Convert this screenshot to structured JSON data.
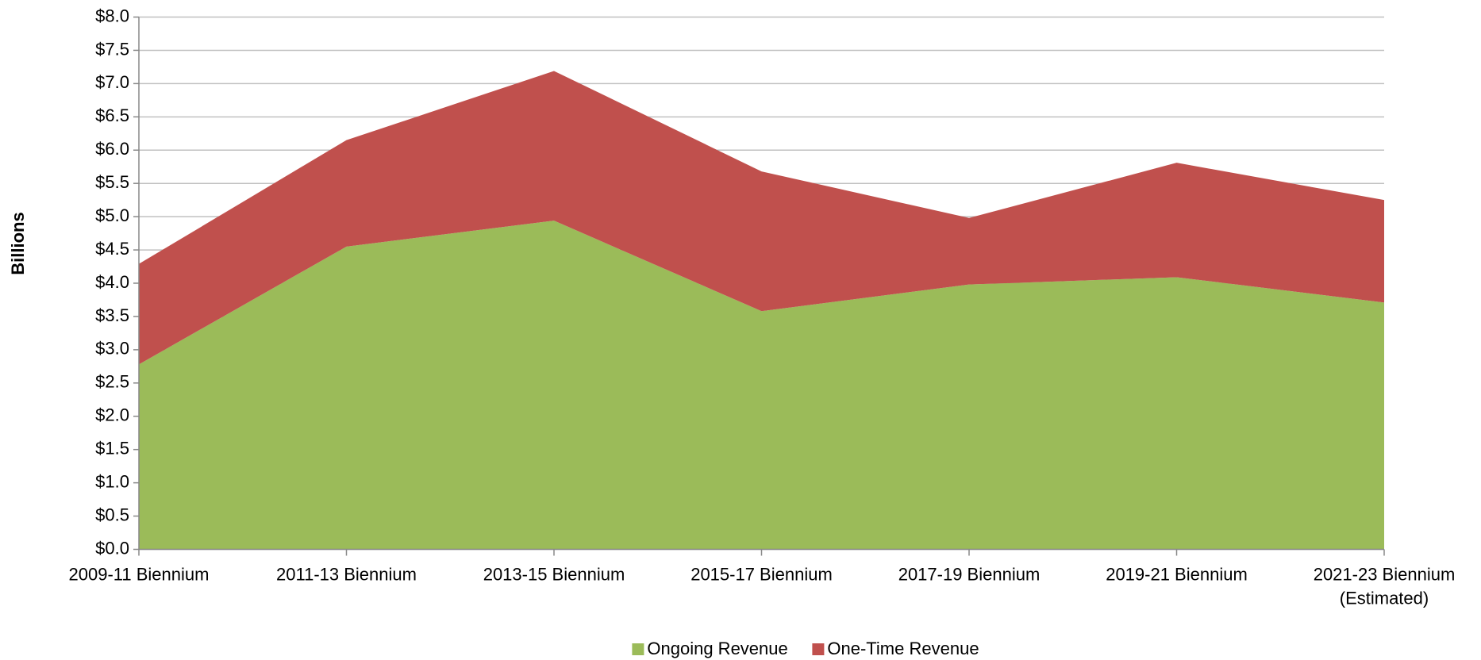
{
  "chart_data": {
    "type": "stacked_area",
    "y_label": "Billions",
    "categories": [
      "2009-11 Biennium",
      "2011-13 Biennium",
      "2013-15 Biennium",
      "2015-17 Biennium",
      "2017-19 Biennium",
      "2019-21 Biennium",
      "2021-23 Biennium\n(Estimated)"
    ],
    "series": [
      {
        "name": "Ongoing Revenue",
        "color": "#9bbb59",
        "values": [
          2.78,
          4.55,
          4.94,
          3.58,
          3.98,
          4.09,
          3.71
        ]
      },
      {
        "name": "One-Time Revenue",
        "color": "#c0504d",
        "values": [
          1.51,
          1.6,
          2.25,
          2.1,
          1.0,
          1.72,
          1.54
        ]
      }
    ],
    "ylim": [
      0,
      8
    ],
    "yticks": [
      {
        "value": 0,
        "label": "$0.0"
      },
      {
        "value": 0.5,
        "label": "$0.5"
      },
      {
        "value": 1,
        "label": "$1.0"
      },
      {
        "value": 1.5,
        "label": "$1.5"
      },
      {
        "value": 2,
        "label": "$2.0"
      },
      {
        "value": 2.5,
        "label": "$2.5"
      },
      {
        "value": 3,
        "label": "$3.0"
      },
      {
        "value": 3.5,
        "label": "$3.5"
      },
      {
        "value": 4,
        "label": "$4.0"
      },
      {
        "value": 4.5,
        "label": "$4.5"
      },
      {
        "value": 5,
        "label": "$5.0"
      },
      {
        "value": 5.5,
        "label": "$5.5"
      },
      {
        "value": 6,
        "label": "$6.0"
      },
      {
        "value": 6.5,
        "label": "$6.5"
      },
      {
        "value": 7,
        "label": "$7.0"
      },
      {
        "value": 7.5,
        "label": "$7.5"
      },
      {
        "value": 8,
        "label": "$8.0"
      }
    ],
    "grid": true,
    "legend": "bottom"
  }
}
